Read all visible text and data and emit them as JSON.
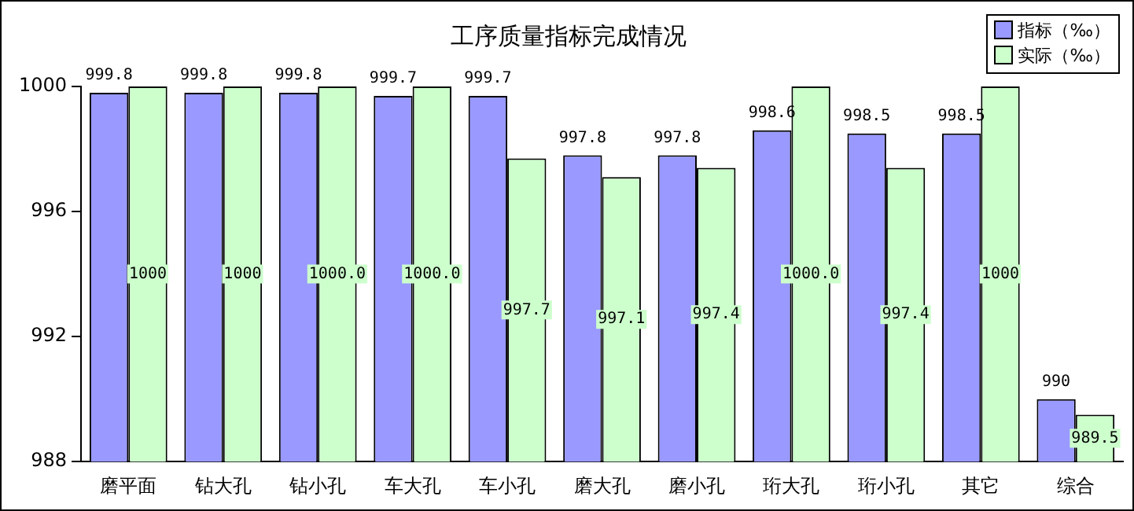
{
  "chart_data": {
    "type": "bar",
    "title": "工序质量指标完成情况",
    "categories": [
      "磨平面",
      "钻大孔",
      "钻小孔",
      "车大孔",
      "车小孔",
      "磨大孔",
      "磨小孔",
      "珩大孔",
      "珩小孔",
      "其它",
      "综合"
    ],
    "series": [
      {
        "name": "指标（‰）",
        "color": "#9999ff",
        "values": [
          999.8,
          999.8,
          999.8,
          999.7,
          999.7,
          997.8,
          997.8,
          998.6,
          998.5,
          998.5,
          990
        ],
        "value_labels": [
          "999.8",
          "999.8",
          "999.8",
          "999.7",
          "999.7",
          "997.8",
          "997.8",
          "998.6",
          "998.5",
          "998.5",
          "990"
        ]
      },
      {
        "name": "实际（‰）",
        "color": "#ccffcc",
        "values": [
          1000,
          1000,
          1000,
          1000,
          997.7,
          997.1,
          997.4,
          1000,
          997.4,
          1000,
          989.5
        ],
        "value_labels": [
          "1000",
          "1000",
          "1000.0",
          "1000.0",
          "997.7",
          "997.1",
          "997.4",
          "1000.0",
          "997.4",
          "1000",
          "989.5"
        ]
      }
    ],
    "ylim": [
      988,
      1000
    ],
    "yticks": [
      988,
      992,
      996,
      1000
    ],
    "grid": false,
    "legend": "top right"
  }
}
